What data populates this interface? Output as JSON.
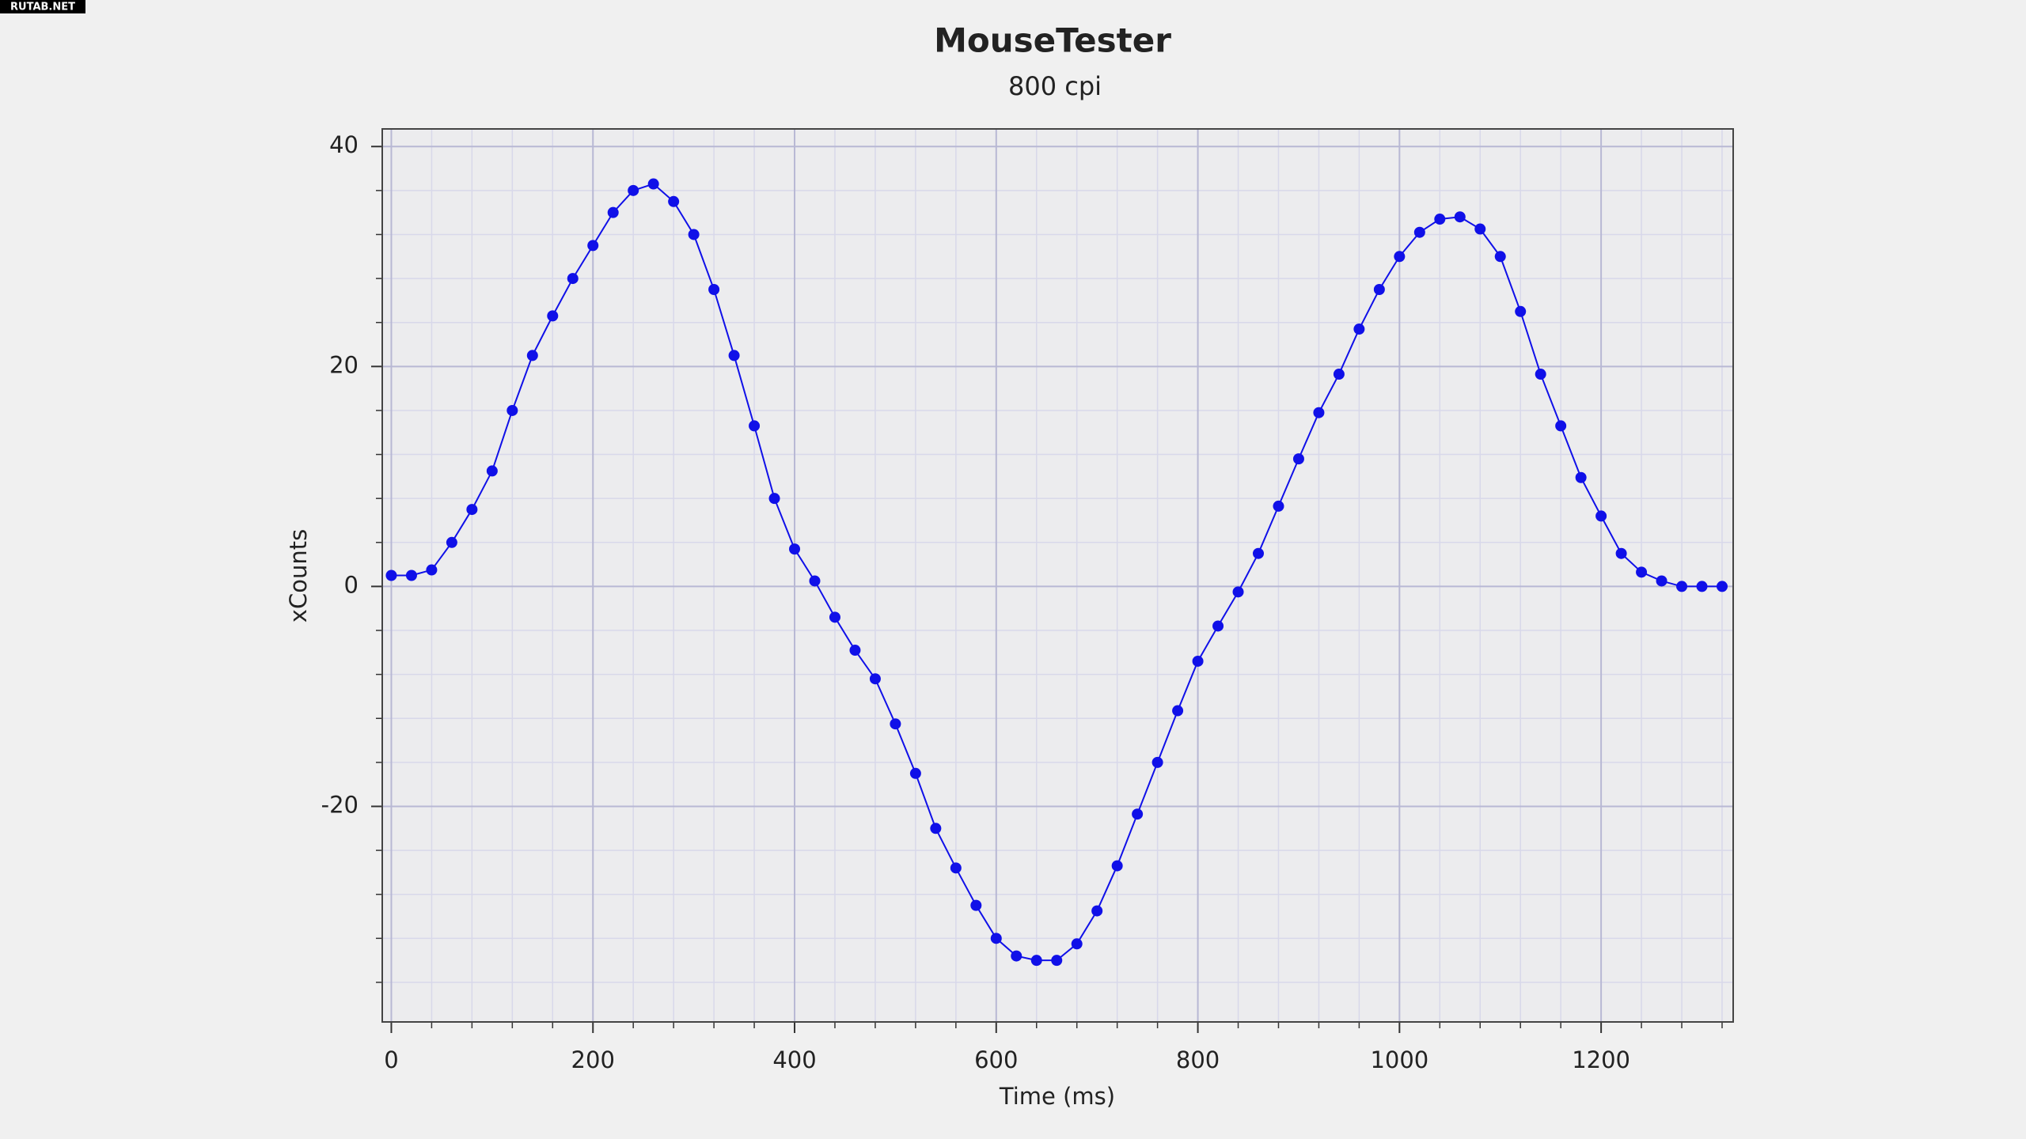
{
  "watermark": "RUTAB.NET",
  "chart_data": {
    "type": "line",
    "title": "MouseTester",
    "subtitle": "800 cpi",
    "x_label": "Time (ms)",
    "y_label": "xCounts",
    "x": [
      0,
      20,
      40,
      60,
      80,
      100,
      120,
      140,
      160,
      180,
      200,
      220,
      240,
      260,
      280,
      300,
      320,
      340,
      360,
      380,
      400,
      420,
      440,
      460,
      480,
      500,
      520,
      540,
      560,
      580,
      600,
      620,
      640,
      660,
      680,
      700,
      720,
      740,
      760,
      780,
      800,
      820,
      840,
      860,
      880,
      900,
      920,
      940,
      960,
      980,
      1000,
      1020,
      1040,
      1060,
      1080,
      1100,
      1120,
      1140,
      1160,
      1180,
      1200,
      1220,
      1240,
      1260,
      1280,
      1300,
      1320
    ],
    "series": [
      {
        "color": "#1010e8",
        "markers": true,
        "values": [
          1,
          1,
          1.5,
          4,
          7,
          10.5,
          16,
          21,
          24.6,
          28,
          31,
          34,
          36,
          36.6,
          35,
          32,
          27,
          21,
          14.6,
          8,
          3.4,
          0.5,
          -2.8,
          -5.8,
          -8.4,
          -12.5,
          -17,
          -22,
          -25.6,
          -29,
          -32,
          -33.6,
          -34,
          -34,
          -32.5,
          -29.5,
          -25.4,
          -20.7,
          -16,
          -11.3,
          -6.8,
          -3.6,
          -0.5,
          3,
          7.3,
          11.6,
          15.8,
          19.3,
          23.4,
          27,
          30,
          32.2,
          33.4,
          33.6,
          32.5,
          30,
          25,
          19.3,
          14.6,
          9.9,
          6.4,
          3,
          1.3,
          0.5,
          0,
          0,
          0
        ]
      }
    ],
    "xlim": [
      -9,
      1331
    ],
    "ylim": [
      -39.6,
      41.6
    ],
    "xticks": [
      0,
      200,
      400,
      600,
      800,
      1000,
      1200
    ],
    "yticks": [
      -20,
      0,
      20,
      40
    ],
    "xminor": [
      40,
      80,
      120,
      160,
      240,
      280,
      320,
      360,
      440,
      480,
      520,
      560,
      640,
      680,
      720,
      760,
      840,
      880,
      920,
      960,
      1040,
      1080,
      1120,
      1160,
      1240,
      1280,
      1320
    ],
    "yminor": [
      -36,
      -32,
      -28,
      -24,
      -16,
      -12,
      -8,
      -4,
      4,
      8,
      12,
      16,
      24,
      28,
      32,
      36
    ],
    "grid": true
  }
}
